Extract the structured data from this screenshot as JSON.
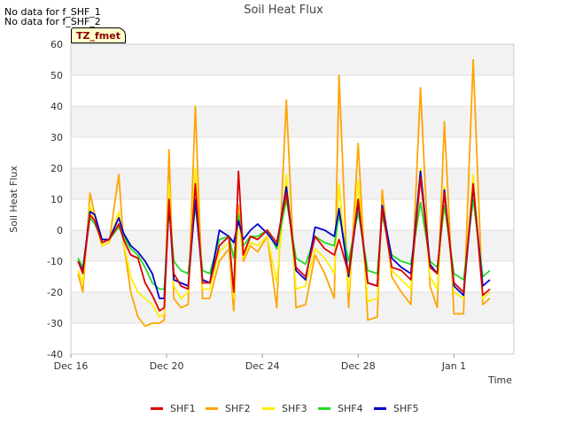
{
  "notes": [
    "No data for f_SHF_1",
    "No data for f_SHF_2"
  ],
  "tag_label": "TZ_fmet",
  "chart_data": {
    "type": "line",
    "title": "Soil Heat Flux",
    "xlabel": "Time",
    "ylabel": "Soil Heat Flux",
    "ylim": [
      -40,
      60
    ],
    "yticks": [
      -40,
      -30,
      -20,
      -10,
      0,
      10,
      20,
      30,
      40,
      50,
      60
    ],
    "xlim": [
      0,
      18.5
    ],
    "xticks": [
      {
        "value": 0,
        "label": "Dec 16"
      },
      {
        "value": 4,
        "label": "Dec 20"
      },
      {
        "value": 8,
        "label": "Dec 24"
      },
      {
        "value": 12,
        "label": "Dec 28"
      },
      {
        "value": 16,
        "label": "Jan 1"
      }
    ],
    "grid_bands": true,
    "legend_position": "bottom-center",
    "series": [
      {
        "name": "SHF1",
        "color": "#dd0000",
        "x": [
          0.3,
          0.5,
          0.8,
          1.0,
          1.3,
          1.6,
          2.0,
          2.2,
          2.5,
          2.8,
          3.1,
          3.4,
          3.7,
          3.9,
          4.1,
          4.3,
          4.6,
          4.9,
          5.2,
          5.5,
          5.8,
          6.2,
          6.6,
          6.8,
          7.0,
          7.2,
          7.5,
          7.8,
          8.2,
          8.6,
          9.0,
          9.4,
          9.8,
          10.2,
          10.6,
          11.0,
          11.2,
          11.6,
          12.0,
          12.4,
          12.8,
          13.0,
          13.4,
          13.8,
          14.2,
          14.6,
          15.0,
          15.3,
          15.6,
          16.0,
          16.4,
          16.8,
          17.2,
          17.5
        ],
        "y": [
          -10,
          -14,
          5,
          3,
          -4,
          -3,
          2,
          -3,
          -8,
          -9,
          -17,
          -21,
          -26,
          -25,
          10,
          -14,
          -18,
          -19,
          15,
          -17,
          -17,
          -5,
          -2,
          -20,
          19,
          -8,
          -2,
          -3,
          0,
          -4,
          12,
          -12,
          -15,
          -2,
          -6,
          -8,
          -3,
          -14,
          10,
          -17,
          -18,
          7,
          -12,
          -13,
          -16,
          17,
          -12,
          -14,
          12,
          -17,
          -20,
          15,
          -21,
          -19
        ]
      },
      {
        "name": "SHF2",
        "color": "#ffa500",
        "x": [
          0.3,
          0.5,
          0.8,
          1.0,
          1.3,
          1.6,
          2.0,
          2.2,
          2.5,
          2.8,
          3.1,
          3.4,
          3.7,
          3.9,
          4.1,
          4.3,
          4.6,
          4.9,
          5.2,
          5.5,
          5.8,
          6.2,
          6.6,
          6.8,
          7.0,
          7.2,
          7.5,
          7.8,
          8.2,
          8.6,
          9.0,
          9.4,
          9.8,
          10.2,
          10.6,
          11.0,
          11.2,
          11.6,
          12.0,
          12.4,
          12.8,
          13.0,
          13.4,
          13.8,
          14.2,
          14.6,
          15.0,
          15.3,
          15.6,
          16.0,
          16.4,
          16.8,
          17.2,
          17.5
        ],
        "y": [
          -14,
          -20,
          12,
          5,
          -5,
          -4,
          18,
          -4,
          -20,
          -28,
          -31,
          -30,
          -30,
          -29,
          26,
          -22,
          -25,
          -24,
          40,
          -22,
          -22,
          -10,
          -6,
          -26,
          8,
          -10,
          -5,
          -7,
          -2,
          -25,
          42,
          -25,
          -24,
          -8,
          -14,
          -22,
          50,
          -25,
          28,
          -29,
          -28,
          13,
          -15,
          -20,
          -24,
          46,
          -18,
          -25,
          35,
          -27,
          -27,
          55,
          -24,
          -22
        ]
      },
      {
        "name": "SHF3",
        "color": "#ffee00",
        "x": [
          0.3,
          0.5,
          0.8,
          1.0,
          1.3,
          1.6,
          2.0,
          2.2,
          2.5,
          2.8,
          3.1,
          3.4,
          3.7,
          3.9,
          4.1,
          4.3,
          4.6,
          4.9,
          5.2,
          5.5,
          5.8,
          6.2,
          6.6,
          6.8,
          7.0,
          7.2,
          7.5,
          7.8,
          8.2,
          8.6,
          9.0,
          9.4,
          9.8,
          10.2,
          10.6,
          11.0,
          11.2,
          11.6,
          12.0,
          12.4,
          12.8,
          13.0,
          13.4,
          13.8,
          14.2,
          14.6,
          15.0,
          15.3,
          15.6,
          16.0,
          16.4,
          16.8,
          17.2,
          17.5
        ],
        "y": [
          -13,
          -17,
          8,
          3,
          -5,
          -4,
          6,
          -4,
          -15,
          -20,
          -22,
          -24,
          -28,
          -27,
          15,
          -18,
          -22,
          -20,
          20,
          -19,
          -19,
          -7,
          -4,
          -22,
          5,
          -9,
          -4,
          -5,
          -2,
          -17,
          18,
          -19,
          -18,
          -6,
          -9,
          -14,
          15,
          -20,
          16,
          -23,
          -22,
          8,
          -13,
          -16,
          -19,
          20,
          -15,
          -19,
          14,
          -20,
          -22,
          18,
          -22,
          -20
        ]
      },
      {
        "name": "SHF4",
        "color": "#22dd22",
        "x": [
          0.3,
          0.5,
          0.8,
          1.0,
          1.3,
          1.6,
          2.0,
          2.2,
          2.5,
          2.8,
          3.1,
          3.4,
          3.7,
          3.9,
          4.1,
          4.3,
          4.6,
          4.9,
          5.2,
          5.5,
          5.8,
          6.2,
          6.6,
          6.8,
          7.0,
          7.2,
          7.5,
          7.8,
          8.2,
          8.6,
          9.0,
          9.4,
          9.8,
          10.2,
          10.6,
          11.0,
          11.2,
          11.6,
          12.0,
          12.4,
          12.8,
          13.0,
          13.4,
          13.8,
          14.2,
          14.6,
          15.0,
          15.3,
          15.6,
          16.0,
          16.4,
          16.8,
          17.2,
          17.5
        ],
        "y": [
          -9,
          -12,
          4,
          2,
          -3,
          -3,
          1,
          -2,
          -6,
          -8,
          -12,
          -17,
          -19,
          -19,
          7,
          -10,
          -13,
          -14,
          8,
          -13,
          -14,
          -3,
          -2,
          -9,
          5,
          -5,
          -2,
          -2,
          0,
          -6,
          10,
          -9,
          -11,
          -2,
          -4,
          -5,
          5,
          -10,
          6,
          -13,
          -14,
          5,
          -8,
          -10,
          -11,
          9,
          -10,
          -12,
          8,
          -14,
          -16,
          10,
          -15,
          -13
        ]
      },
      {
        "name": "SHF5",
        "color": "#0000cc",
        "x": [
          0.3,
          0.5,
          0.8,
          1.0,
          1.3,
          1.6,
          2.0,
          2.2,
          2.5,
          2.8,
          3.1,
          3.4,
          3.7,
          3.9,
          4.1,
          4.3,
          4.6,
          4.9,
          5.2,
          5.5,
          5.8,
          6.2,
          6.6,
          6.8,
          7.0,
          7.2,
          7.5,
          7.8,
          8.2,
          8.6,
          9.0,
          9.4,
          9.8,
          10.2,
          10.6,
          11.0,
          11.2,
          11.6,
          12.0,
          12.4,
          12.8,
          13.0,
          13.4,
          13.8,
          14.2,
          14.6,
          15.0,
          15.3,
          15.6,
          16.0,
          16.4,
          16.8,
          17.2,
          17.5
        ],
        "y": [
          -10,
          -13,
          6,
          5,
          -3,
          -3,
          4,
          -1,
          -5,
          -7,
          -10,
          -14,
          -22,
          -22,
          9,
          -16,
          -17,
          -18,
          10,
          -16,
          -17,
          0,
          -2,
          -4,
          3,
          -3,
          0,
          2,
          -1,
          -5,
          14,
          -13,
          -16,
          1,
          0,
          -2,
          7,
          -15,
          9,
          -17,
          -18,
          8,
          -9,
          -12,
          -14,
          19,
          -11,
          -14,
          13,
          -18,
          -21,
          14,
          -18,
          -16
        ]
      }
    ]
  }
}
